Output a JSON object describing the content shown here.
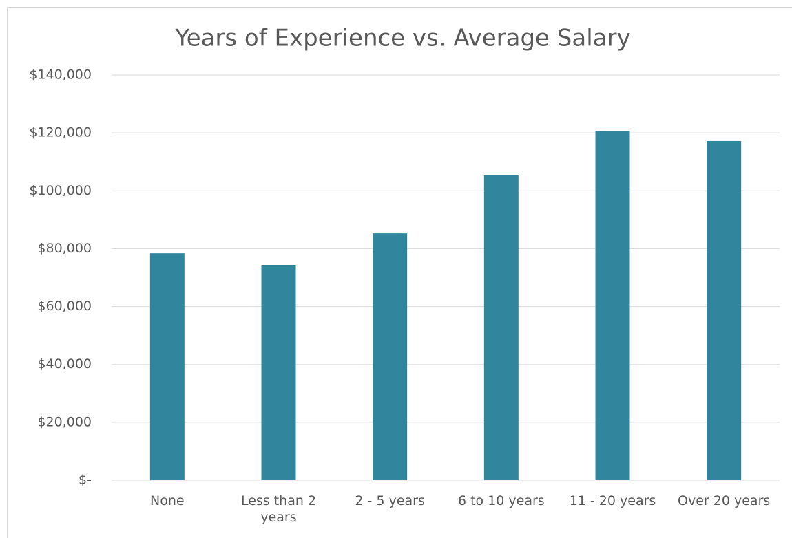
{
  "chart_data": {
    "type": "bar",
    "title": "Years of Experience vs. Average Salary",
    "categories": [
      "None",
      "Less than 2 years",
      "2 - 5 years",
      "6 to 10 years",
      "11 - 20 years",
      "Over 20 years"
    ],
    "values": [
      78400,
      74400,
      85300,
      105300,
      120700,
      117200
    ],
    "color": "#31869e",
    "ylim": [
      0,
      140000
    ],
    "yticks": [
      {
        "value": 0,
        "label": "$-"
      },
      {
        "value": 20000,
        "label": "$20,000"
      },
      {
        "value": 40000,
        "label": "$40,000"
      },
      {
        "value": 60000,
        "label": "$60,000"
      },
      {
        "value": 80000,
        "label": "$80,000"
      },
      {
        "value": 100000,
        "label": "$100,000"
      },
      {
        "value": 120000,
        "label": "$120,000"
      },
      {
        "value": 140000,
        "label": "$140,000"
      }
    ],
    "grid": true
  }
}
